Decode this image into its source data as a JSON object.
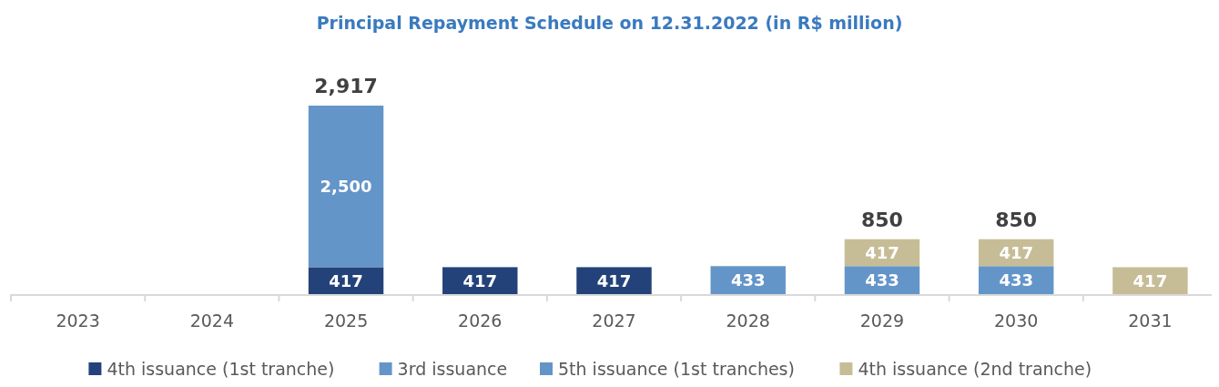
{
  "chart_data": {
    "type": "bar",
    "title": "Principal Repayment Schedule on 12.31.2022 (in R$ million)",
    "categories": [
      "2023",
      "2024",
      "2025",
      "2026",
      "2027",
      "2028",
      "2029",
      "2030",
      "2031"
    ],
    "stacked": true,
    "legend": "bottom",
    "series": [
      {
        "name": "4th issuance (1st tranche)",
        "color": "#24427a",
        "values": [
          null,
          null,
          417,
          417,
          417,
          null,
          null,
          null,
          null
        ],
        "value_labels": [
          null,
          null,
          "417",
          "417",
          "417",
          null,
          null,
          null,
          null
        ]
      },
      {
        "name": "3rd issuance",
        "color": "#6495c8",
        "values": [
          null,
          null,
          2500,
          null,
          null,
          null,
          null,
          null,
          null
        ],
        "value_labels": [
          null,
          null,
          "2,500",
          null,
          null,
          null,
          null,
          null,
          null
        ]
      },
      {
        "name": "5th issuance (1st tranches)",
        "color": "#6495c8",
        "values": [
          null,
          null,
          null,
          null,
          null,
          433,
          433,
          433,
          null
        ],
        "value_labels": [
          null,
          null,
          null,
          null,
          null,
          "433",
          "433",
          "433",
          null
        ]
      },
      {
        "name": "4th issuance (2nd tranche)",
        "color": "#c6bd97",
        "values": [
          null,
          null,
          null,
          null,
          null,
          null,
          417,
          417,
          417
        ],
        "value_labels": [
          null,
          null,
          null,
          null,
          null,
          null,
          "417",
          "417",
          "417"
        ]
      }
    ],
    "totals": [
      null,
      null,
      "2,917",
      null,
      null,
      null,
      "850",
      "850",
      null
    ]
  }
}
